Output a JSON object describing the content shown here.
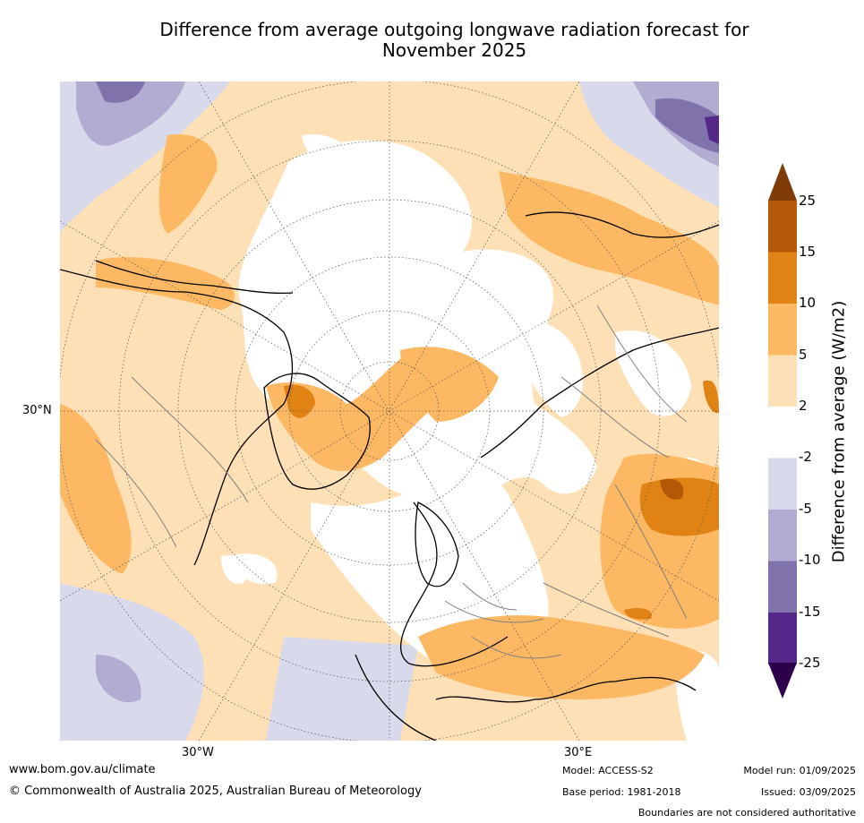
{
  "title": "Difference from average outgoing longwave radiation forecast for November 2025",
  "title_lines": [
    "Difference from average outgoing longwave radiation forecast for",
    "November 2025"
  ],
  "map": {
    "projection": "north polar stereographic",
    "lat_label": "30°N",
    "lon_labels": [
      "30°W",
      "30°E"
    ]
  },
  "colorbar": {
    "label": "Difference from average (W/m2)",
    "ticks": [
      "25",
      "15",
      "10",
      "5",
      "2",
      "-2",
      "-5",
      "-10",
      "-15",
      "-25"
    ],
    "colors": {
      "gt25": "#7f3b08",
      "15_25": "#b35806",
      "10_15": "#e08214",
      "5_10": "#fdb863",
      "2_5": "#fee0b6",
      "neutral": "#ffffff",
      "m5_m2": "#d8daeb",
      "m10_m5": "#b2abd2",
      "m15_m10": "#8073ac",
      "m25_m15": "#542788",
      "lt_m25": "#2d004b"
    }
  },
  "footer": {
    "website": "www.bom.gov.au/climate",
    "copyright": "© Commonwealth of Australia 2025, Australian Bureau of Meteorology",
    "model": "Model: ACCESS-S2",
    "base_period": "Base period: 1981-2018",
    "model_run": "Model run: 01/09/2025",
    "issued": "Issued: 03/09/2025",
    "disclaimer": "Boundaries are not considered authoritative"
  }
}
